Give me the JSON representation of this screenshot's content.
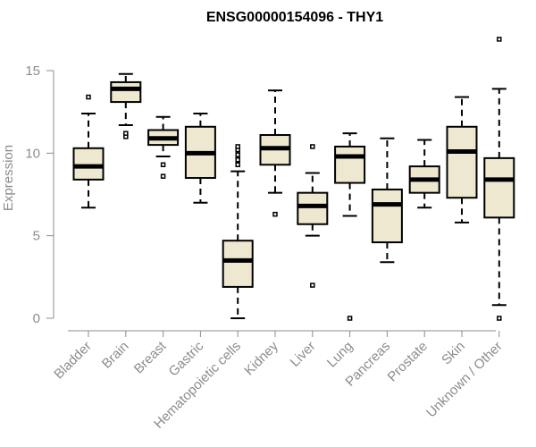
{
  "chart_data": {
    "type": "boxplot",
    "title": "ENSG00000154096 - THY1",
    "xlabel": "",
    "ylabel": "Expression",
    "ylim": [
      0,
      15
    ],
    "yticks": [
      0,
      5,
      10,
      15
    ],
    "box_fill": "#efe8d0",
    "box_stroke": "#000000",
    "axis_color": "#8c8c8c",
    "categories": [
      "Bladder",
      "Brain",
      "Breast",
      "Gastric",
      "Hematopoietic cells",
      "Kidney",
      "Liver",
      "Lung",
      "Pancreas",
      "Prostate",
      "Skin",
      "Unknown / Other"
    ],
    "boxes": [
      {
        "label": "Bladder",
        "whisker_low": 6.7,
        "q1": 8.4,
        "median": 9.2,
        "q3": 10.3,
        "whisker_high": 12.4,
        "outliers": [
          13.4
        ]
      },
      {
        "label": "Brain",
        "whisker_low": 11.7,
        "q1": 13.1,
        "median": 13.9,
        "q3": 14.3,
        "whisker_high": 14.8,
        "outliers": [
          11.1,
          11.0,
          11.2
        ]
      },
      {
        "label": "Breast",
        "whisker_low": 9.8,
        "q1": 10.5,
        "median": 10.9,
        "q3": 11.4,
        "whisker_high": 12.2,
        "outliers": [
          9.3,
          8.6
        ]
      },
      {
        "label": "Gastric",
        "whisker_low": 7.0,
        "q1": 8.5,
        "median": 10.0,
        "q3": 11.6,
        "whisker_high": 12.4,
        "outliers": []
      },
      {
        "label": "Hematopoietic cells",
        "whisker_low": 0.0,
        "q1": 1.9,
        "median": 3.5,
        "q3": 4.7,
        "whisker_high": 8.9,
        "outliers": [
          9.3,
          9.6,
          9.9,
          10.2,
          10.4
        ]
      },
      {
        "label": "Kidney",
        "whisker_low": 7.6,
        "q1": 9.3,
        "median": 10.3,
        "q3": 11.1,
        "whisker_high": 13.8,
        "outliers": [
          6.3
        ]
      },
      {
        "label": "Liver",
        "whisker_low": 5.0,
        "q1": 5.7,
        "median": 6.8,
        "q3": 7.6,
        "whisker_high": 8.8,
        "outliers": [
          10.4,
          2.0
        ]
      },
      {
        "label": "Lung",
        "whisker_low": 6.2,
        "q1": 8.2,
        "median": 9.8,
        "q3": 10.4,
        "whisker_high": 11.2,
        "outliers": [
          0.0
        ]
      },
      {
        "label": "Pancreas",
        "whisker_low": 3.4,
        "q1": 4.6,
        "median": 6.9,
        "q3": 7.8,
        "whisker_high": 10.9,
        "outliers": []
      },
      {
        "label": "Prostate",
        "whisker_low": 6.7,
        "q1": 7.6,
        "median": 8.4,
        "q3": 9.2,
        "whisker_high": 10.8,
        "outliers": []
      },
      {
        "label": "Skin",
        "whisker_low": 5.8,
        "q1": 7.3,
        "median": 10.1,
        "q3": 11.6,
        "whisker_high": 13.4,
        "outliers": []
      },
      {
        "label": "Unknown / Other",
        "whisker_low": 0.8,
        "q1": 6.1,
        "median": 8.4,
        "q3": 9.7,
        "whisker_high": 13.9,
        "outliers": [
          16.9,
          0.0
        ]
      }
    ]
  }
}
